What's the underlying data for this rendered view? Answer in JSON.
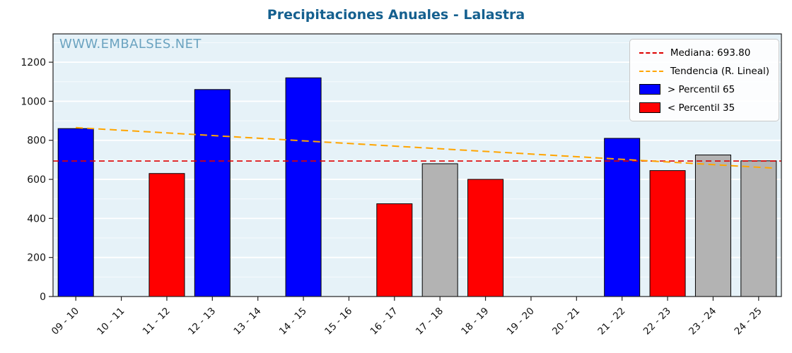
{
  "watermark": "WWW.EMBALSES.NET",
  "legend": {
    "median_label": "Mediana: 693.80",
    "trend_label": "Tendencia (R. Lineal)",
    "p65_label": "> Percentil 65",
    "p35_label": "< Percentil 35"
  },
  "colors": {
    "title": "#15608f",
    "watermark": "#6ba3c0",
    "plot_bg": "#e6f2f8",
    "gridline": "#ffffff",
    "median": "#dd0000",
    "trend": "#ffa500",
    "p65": "#0000ff",
    "p35": "#ff0000",
    "mid_gray": "#b3b3b3",
    "axis_border": "#222222",
    "tick_text": "#111111"
  },
  "chart_data": {
    "type": "bar",
    "title": "Precipitaciones Anuales - Lalastra",
    "xlabel": "",
    "ylabel": "",
    "categories": [
      "09 - 10",
      "10 - 11",
      "11 - 12",
      "12 - 13",
      "13 - 14",
      "14 - 15",
      "15 - 16",
      "16 - 17",
      "17 - 18",
      "18 - 19",
      "19 - 20",
      "20 - 21",
      "21 - 22",
      "22 - 23",
      "23 - 24",
      "24 - 25"
    ],
    "values": [
      860,
      null,
      630,
      1060,
      null,
      1120,
      null,
      475,
      680,
      600,
      null,
      null,
      810,
      645,
      725,
      695
    ],
    "bar_colors": [
      "#0000ff",
      null,
      "#ff0000",
      "#0000ff",
      null,
      "#0000ff",
      null,
      "#ff0000",
      "#b3b3b3",
      "#ff0000",
      null,
      null,
      "#0000ff",
      "#ff0000",
      "#b3b3b3",
      "#b3b3b3"
    ],
    "median": 693.8,
    "trend": {
      "start_value": 865,
      "end_value": 662
    },
    "yticks": [
      0,
      200,
      400,
      600,
      800,
      1000,
      1200
    ],
    "ylim": [
      0,
      1345
    ],
    "grid": true,
    "legend_position": "upper right"
  }
}
